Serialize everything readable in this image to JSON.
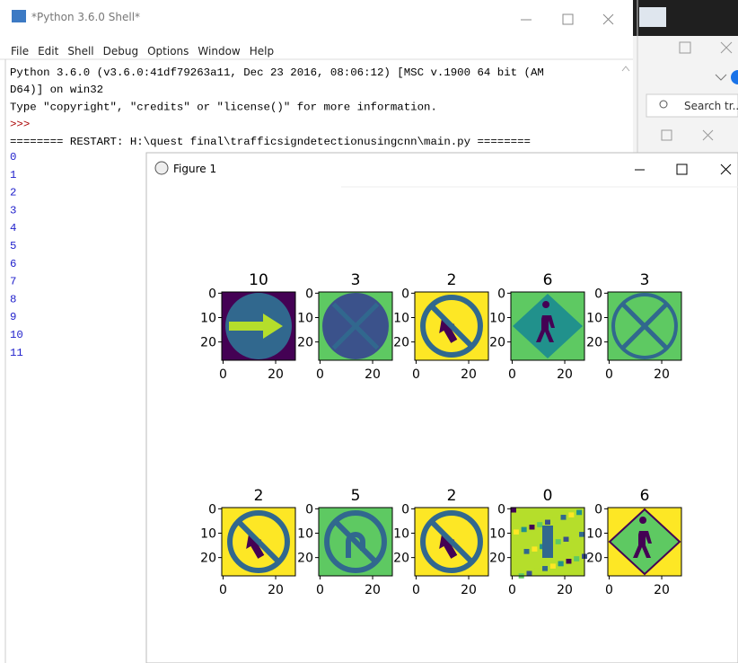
{
  "shell": {
    "title": "*Python 3.6.0 Shell*",
    "menu": [
      "File",
      "Edit",
      "Shell",
      "Debug",
      "Options",
      "Window",
      "Help"
    ],
    "lines": [
      "Python 3.6.0 (v3.6.0:41df79263a11, Dec 23 2016, 08:06:12) [MSC v.1900 64 bit (AM",
      "D64)] on win32",
      "Type \"copyright\", \"credits\" or \"license()\" for more information.",
      ">>>",
      "======== RESTART: H:\\quest final\\trafficsigndetectionusingcnn\\main.py ========"
    ],
    "output": [
      "0",
      "1",
      "2",
      "3",
      "4",
      "5",
      "6",
      "7",
      "8",
      "9",
      "10",
      "11"
    ]
  },
  "background_window": {
    "search": "Search tr..."
  },
  "figure": {
    "title": "Figure 1",
    "subplots": [
      "10",
      "3",
      "2",
      "6",
      "3",
      "2",
      "5",
      "2",
      "0",
      "6"
    ],
    "xticks": [
      0,
      20
    ],
    "yticks": [
      0,
      10,
      20
    ],
    "image_size": 28
  }
}
